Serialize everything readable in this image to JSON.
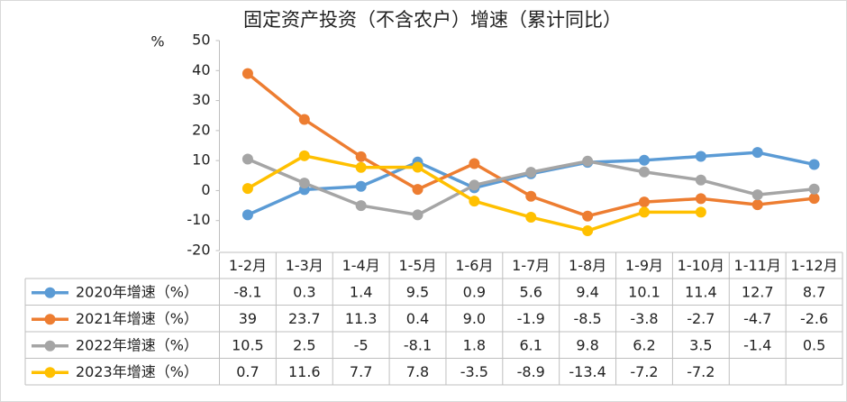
{
  "chart_data": {
    "type": "line",
    "title": "固定资产投资（不含农户）增速（累计同比）",
    "y_label": "%",
    "categories": [
      "1-2月",
      "1-3月",
      "1-4月",
      "1-5月",
      "1-6月",
      "1-7月",
      "1-8月",
      "1-9月",
      "1-10月",
      "1-11月",
      "1-12月"
    ],
    "series": [
      {
        "name": "2020年增速（%）",
        "color": "#5b9bd5",
        "values": [
          -8.1,
          0.3,
          1.4,
          9.5,
          0.9,
          5.6,
          9.4,
          10.1,
          11.4,
          12.7,
          8.7
        ],
        "value_labels": [
          "-8.1",
          "0.3",
          "1.4",
          "9.5",
          "0.9",
          "5.6",
          "9.4",
          "10.1",
          "11.4",
          "12.7",
          "8.7"
        ]
      },
      {
        "name": "2021年增速（%）",
        "color": "#ed7d31",
        "values": [
          39,
          23.7,
          11.3,
          0.4,
          9.0,
          -1.9,
          -8.5,
          -3.8,
          -2.7,
          -4.7,
          -2.6
        ],
        "value_labels": [
          "39",
          "23.7",
          "11.3",
          "0.4",
          "9.0",
          "-1.9",
          "-8.5",
          "-3.8",
          "-2.7",
          "-4.7",
          "-2.6"
        ]
      },
      {
        "name": "2022年增速（%）",
        "color": "#a5a5a5",
        "values": [
          10.5,
          2.5,
          -5,
          -8.1,
          1.8,
          6.1,
          9.8,
          6.2,
          3.5,
          -1.4,
          0.5
        ],
        "value_labels": [
          "10.5",
          "2.5",
          "-5",
          "-8.1",
          "1.8",
          "6.1",
          "9.8",
          "6.2",
          "3.5",
          "-1.4",
          "0.5"
        ]
      },
      {
        "name": "2023年增速（%）",
        "color": "#ffc000",
        "values": [
          0.7,
          11.6,
          7.7,
          7.8,
          -3.5,
          -8.9,
          -13.4,
          -7.2,
          -7.2,
          null,
          null
        ],
        "value_labels": [
          "0.7",
          "11.6",
          "7.7",
          "7.8",
          "-3.5",
          "-8.9",
          "-13.4",
          "-7.2",
          "-7.2",
          null,
          null
        ]
      }
    ],
    "ylim": [
      -20,
      50
    ],
    "yticks": [
      -20,
      -10,
      0,
      10,
      20,
      30,
      40,
      50
    ],
    "grid": false,
    "data_table": true
  }
}
